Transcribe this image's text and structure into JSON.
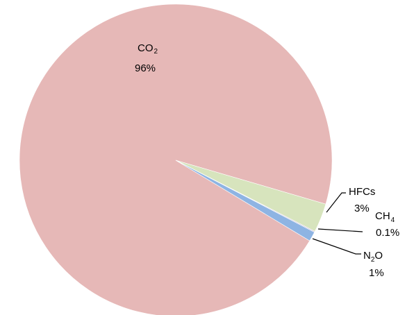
{
  "chart_data": {
    "type": "pie",
    "slices": [
      {
        "label": "CO",
        "subscript": "2",
        "suffix": "",
        "value": 96,
        "value_label": "96%",
        "color": "#e6b8b7"
      },
      {
        "label": "HFCs",
        "subscript": "",
        "suffix": "",
        "value": 3,
        "value_label": "3%",
        "color": "#d7e4bd"
      },
      {
        "label": "CH",
        "subscript": "4",
        "suffix": "",
        "value": 0.1,
        "value_label": "0.1%",
        "color": "#ccc1da"
      },
      {
        "label": "N",
        "subscript": "2",
        "suffix": "O",
        "value": 1,
        "value_label": "1%",
        "color": "#8eb4e3"
      }
    ]
  }
}
